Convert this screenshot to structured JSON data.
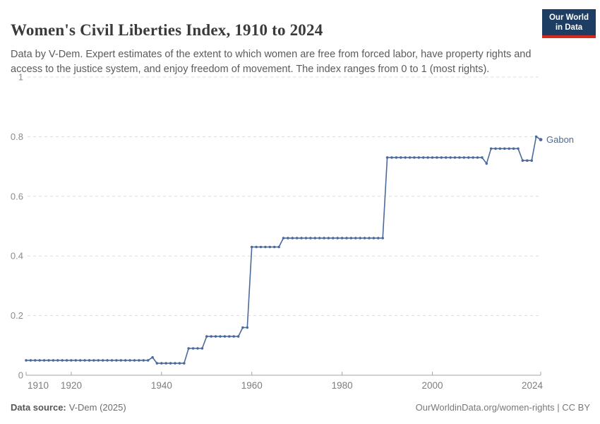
{
  "header": {
    "title": "Women's Civil Liberties Index, 1910 to 2024",
    "subtitle": "Data by V-Dem. Expert estimates of the extent to which women are free from forced labor, have property rights and access to the justice system, and enjoy freedom of movement. The index ranges from 0 to 1 (most rights).",
    "logo": {
      "line1": "Our World",
      "line2": "in Data"
    }
  },
  "footer": {
    "source_label": "Data source:",
    "source_value": "V-Dem (2025)",
    "rights": "OurWorldinData.org/women-rights | CC BY"
  },
  "colors": {
    "series_blue": "#4C6A9C",
    "logo_navy": "#1d3d63",
    "logo_red": "#d42b21",
    "gridline": "#dcdcdc",
    "axis": "#a5a5a5",
    "tick_label": "#8b8b8b"
  },
  "chart_data": {
    "type": "line",
    "title": "Women's Civil Liberties Index, 1910 to 2024",
    "xlabel": "",
    "ylabel": "",
    "xlim": [
      1910,
      2024
    ],
    "ylim": [
      0,
      1
    ],
    "xticks": [
      1910,
      1920,
      1940,
      1960,
      1980,
      2000,
      2024
    ],
    "yticks": [
      0,
      0.2,
      0.4,
      0.6,
      0.8,
      1
    ],
    "ytick_labels": [
      "0",
      "0.2",
      "0.4",
      "0.6",
      "0.8",
      "1"
    ],
    "grid": "dashed-horizontal",
    "legend_position": "end-of-line",
    "series": [
      {
        "name": "Gabon",
        "color": "#4C6A9C",
        "points": [
          [
            1910,
            0.05
          ],
          [
            1911,
            0.05
          ],
          [
            1912,
            0.05
          ],
          [
            1913,
            0.05
          ],
          [
            1914,
            0.05
          ],
          [
            1915,
            0.05
          ],
          [
            1916,
            0.05
          ],
          [
            1917,
            0.05
          ],
          [
            1918,
            0.05
          ],
          [
            1919,
            0.05
          ],
          [
            1920,
            0.05
          ],
          [
            1921,
            0.05
          ],
          [
            1922,
            0.05
          ],
          [
            1923,
            0.05
          ],
          [
            1924,
            0.05
          ],
          [
            1925,
            0.05
          ],
          [
            1926,
            0.05
          ],
          [
            1927,
            0.05
          ],
          [
            1928,
            0.05
          ],
          [
            1929,
            0.05
          ],
          [
            1930,
            0.05
          ],
          [
            1931,
            0.05
          ],
          [
            1932,
            0.05
          ],
          [
            1933,
            0.05
          ],
          [
            1934,
            0.05
          ],
          [
            1935,
            0.05
          ],
          [
            1936,
            0.05
          ],
          [
            1937,
            0.05
          ],
          [
            1938,
            0.06
          ],
          [
            1939,
            0.04
          ],
          [
            1940,
            0.04
          ],
          [
            1941,
            0.04
          ],
          [
            1942,
            0.04
          ],
          [
            1943,
            0.04
          ],
          [
            1944,
            0.04
          ],
          [
            1945,
            0.04
          ],
          [
            1946,
            0.09
          ],
          [
            1947,
            0.09
          ],
          [
            1948,
            0.09
          ],
          [
            1949,
            0.09
          ],
          [
            1950,
            0.13
          ],
          [
            1951,
            0.13
          ],
          [
            1952,
            0.13
          ],
          [
            1953,
            0.13
          ],
          [
            1954,
            0.13
          ],
          [
            1955,
            0.13
          ],
          [
            1956,
            0.13
          ],
          [
            1957,
            0.13
          ],
          [
            1958,
            0.16
          ],
          [
            1959,
            0.16
          ],
          [
            1960,
            0.43
          ],
          [
            1961,
            0.43
          ],
          [
            1962,
            0.43
          ],
          [
            1963,
            0.43
          ],
          [
            1964,
            0.43
          ],
          [
            1965,
            0.43
          ],
          [
            1966,
            0.43
          ],
          [
            1967,
            0.46
          ],
          [
            1968,
            0.46
          ],
          [
            1969,
            0.46
          ],
          [
            1970,
            0.46
          ],
          [
            1971,
            0.46
          ],
          [
            1972,
            0.46
          ],
          [
            1973,
            0.46
          ],
          [
            1974,
            0.46
          ],
          [
            1975,
            0.46
          ],
          [
            1976,
            0.46
          ],
          [
            1977,
            0.46
          ],
          [
            1978,
            0.46
          ],
          [
            1979,
            0.46
          ],
          [
            1980,
            0.46
          ],
          [
            1981,
            0.46
          ],
          [
            1982,
            0.46
          ],
          [
            1983,
            0.46
          ],
          [
            1984,
            0.46
          ],
          [
            1985,
            0.46
          ],
          [
            1986,
            0.46
          ],
          [
            1987,
            0.46
          ],
          [
            1988,
            0.46
          ],
          [
            1989,
            0.46
          ],
          [
            1990,
            0.73
          ],
          [
            1991,
            0.73
          ],
          [
            1992,
            0.73
          ],
          [
            1993,
            0.73
          ],
          [
            1994,
            0.73
          ],
          [
            1995,
            0.73
          ],
          [
            1996,
            0.73
          ],
          [
            1997,
            0.73
          ],
          [
            1998,
            0.73
          ],
          [
            1999,
            0.73
          ],
          [
            2000,
            0.73
          ],
          [
            2001,
            0.73
          ],
          [
            2002,
            0.73
          ],
          [
            2003,
            0.73
          ],
          [
            2004,
            0.73
          ],
          [
            2005,
            0.73
          ],
          [
            2006,
            0.73
          ],
          [
            2007,
            0.73
          ],
          [
            2008,
            0.73
          ],
          [
            2009,
            0.73
          ],
          [
            2010,
            0.73
          ],
          [
            2011,
            0.73
          ],
          [
            2012,
            0.71
          ],
          [
            2013,
            0.76
          ],
          [
            2014,
            0.76
          ],
          [
            2015,
            0.76
          ],
          [
            2016,
            0.76
          ],
          [
            2017,
            0.76
          ],
          [
            2018,
            0.76
          ],
          [
            2019,
            0.76
          ],
          [
            2020,
            0.72
          ],
          [
            2021,
            0.72
          ],
          [
            2022,
            0.72
          ],
          [
            2023,
            0.8
          ],
          [
            2024,
            0.79
          ]
        ]
      }
    ]
  }
}
